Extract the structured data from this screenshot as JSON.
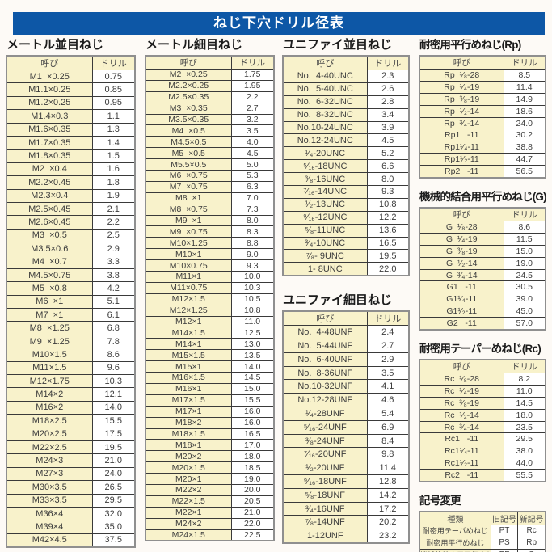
{
  "page_title": "ねじ下穴ドリル径表",
  "colors": {
    "header_bar_blue": "#0d57a6",
    "cell_cream": "#f8f2cb",
    "cell_white": "#ffffff",
    "border_outer_gray": "#8f8f8f",
    "border_inner_dark": "#3a3a3a"
  },
  "tables": [
    {
      "key": "metric-coarse",
      "title": "メートル並目ねじ",
      "headers": [
        "呼び",
        "ドリル"
      ],
      "rows": [
        [
          "M1  ×0.25",
          "0.75"
        ],
        [
          "M1.1×0.25",
          "0.85"
        ],
        [
          "M1.2×0.25",
          "0.95"
        ],
        [
          "M1.4×0.3",
          "1.1"
        ],
        [
          "M1.6×0.35",
          "1.3"
        ],
        [
          "M1.7×0.35",
          "1.4"
        ],
        [
          "M1.8×0.35",
          "1.5"
        ],
        [
          "M2  ×0.4",
          "1.6"
        ],
        [
          "M2.2×0.45",
          "1.8"
        ],
        [
          "M2.3×0.4",
          "1.9"
        ],
        [
          "M2.5×0.45",
          "2.1"
        ],
        [
          "M2.6×0.45",
          "2.2"
        ],
        [
          "M3  ×0.5",
          "2.5"
        ],
        [
          "M3.5×0.6",
          "2.9"
        ],
        [
          "M4  ×0.7",
          "3.3"
        ],
        [
          "M4.5×0.75",
          "3.8"
        ],
        [
          "M5  ×0.8",
          "4.2"
        ],
        [
          "M6  ×1",
          "5.1"
        ],
        [
          "M7  ×1",
          "6.1"
        ],
        [
          "M8  ×1.25",
          "6.8"
        ],
        [
          "M9  ×1.25",
          "7.8"
        ],
        [
          "M10×1.5",
          "8.6"
        ],
        [
          "M11×1.5",
          "9.6"
        ],
        [
          "M12×1.75",
          "10.3"
        ],
        [
          "M14×2",
          "12.1"
        ],
        [
          "M16×2",
          "14.0"
        ],
        [
          "M18×2.5",
          "15.5"
        ],
        [
          "M20×2.5",
          "17.5"
        ],
        [
          "M22×2.5",
          "19.5"
        ],
        [
          "M24×3",
          "21.0"
        ],
        [
          "M27×3",
          "24.0"
        ],
        [
          "M30×3.5",
          "26.5"
        ],
        [
          "M33×3.5",
          "29.5"
        ],
        [
          "M36×4",
          "32.0"
        ],
        [
          "M39×4",
          "35.0"
        ],
        [
          "M42×4.5",
          "37.5"
        ]
      ]
    },
    {
      "key": "metric-fine",
      "title": "メートル細目ねじ",
      "headers": [
        "呼び",
        "ドリル"
      ],
      "rows": [
        [
          "M2  ×0.25",
          "1.75"
        ],
        [
          "M2.2×0.25",
          "1.95"
        ],
        [
          "M2.5×0.35",
          "2.2"
        ],
        [
          "M3  ×0.35",
          "2.7"
        ],
        [
          "M3.5×0.35",
          "3.2"
        ],
        [
          "M4  ×0.5",
          "3.5"
        ],
        [
          "M4.5×0.5",
          "4.0"
        ],
        [
          "M5  ×0.5",
          "4.5"
        ],
        [
          "M5.5×0.5",
          "5.0"
        ],
        [
          "M6  ×0.75",
          "5.3"
        ],
        [
          "M7  ×0.75",
          "6.3"
        ],
        [
          "M8  ×1",
          "7.0"
        ],
        [
          "M8  ×0.75",
          "7.3"
        ],
        [
          "M9  ×1",
          "8.0"
        ],
        [
          "M9  ×0.75",
          "8.3"
        ],
        [
          "M10×1.25",
          "8.8"
        ],
        [
          "M10×1",
          "9.0"
        ],
        [
          "M10×0.75",
          "9.3"
        ],
        [
          "M11×1",
          "10.0"
        ],
        [
          "M11×0.75",
          "10.3"
        ],
        [
          "M12×1.5",
          "10.5"
        ],
        [
          "M12×1.25",
          "10.8"
        ],
        [
          "M12×1",
          "11.0"
        ],
        [
          "M14×1.5",
          "12.5"
        ],
        [
          "M14×1",
          "13.0"
        ],
        [
          "M15×1.5",
          "13.5"
        ],
        [
          "M15×1",
          "14.0"
        ],
        [
          "M16×1.5",
          "14.5"
        ],
        [
          "M16×1",
          "15.0"
        ],
        [
          "M17×1.5",
          "15.5"
        ],
        [
          "M17×1",
          "16.0"
        ],
        [
          "M18×2",
          "16.0"
        ],
        [
          "M18×1.5",
          "16.5"
        ],
        [
          "M18×1",
          "17.0"
        ],
        [
          "M20×2",
          "18.0"
        ],
        [
          "M20×1.5",
          "18.5"
        ],
        [
          "M20×1",
          "19.0"
        ],
        [
          "M22×2",
          "20.0"
        ],
        [
          "M22×1.5",
          "20.5"
        ],
        [
          "M22×1",
          "21.0"
        ],
        [
          "M24×2",
          "22.0"
        ],
        [
          "M24×1.5",
          "22.5"
        ]
      ]
    },
    {
      "key": "unified-coarse",
      "title": "ユニファイ並目ねじ",
      "headers": [
        "呼び",
        "ドリル"
      ],
      "rows": [
        [
          "No.  4-40UNC",
          "2.3"
        ],
        [
          "No.  5-40UNC",
          "2.6"
        ],
        [
          "No.  6-32UNC",
          "2.8"
        ],
        [
          "No.  8-32UNC",
          "3.4"
        ],
        [
          "No.10-24UNC",
          "3.9"
        ],
        [
          "No.12-24UNC",
          "4.5"
        ],
        [
          "¹⁄₄-20UNC",
          "5.2"
        ],
        [
          "⁵⁄₁₆-18UNC",
          "6.6"
        ],
        [
          "³⁄₈-16UNC",
          "8.0"
        ],
        [
          "⁷⁄₁₆-14UNC",
          "9.3"
        ],
        [
          "¹⁄₂-13UNC",
          "10.8"
        ],
        [
          "⁹⁄₁₆-12UNC",
          "12.2"
        ],
        [
          "⁵⁄₈-11UNC",
          "13.6"
        ],
        [
          "³⁄₄-10UNC",
          "16.5"
        ],
        [
          "⁷⁄₈- 9UNC",
          "19.5"
        ],
        [
          "1- 8UNC",
          "22.0"
        ]
      ]
    },
    {
      "key": "unified-fine",
      "title": "ユニファイ細目ねじ",
      "headers": [
        "呼び",
        "ドリル"
      ],
      "rows": [
        [
          "No.  4-48UNF",
          "2.4"
        ],
        [
          "No.  5-44UNF",
          "2.7"
        ],
        [
          "No.  6-40UNF",
          "2.9"
        ],
        [
          "No.  8-36UNF",
          "3.5"
        ],
        [
          "No.10-32UNF",
          "4.1"
        ],
        [
          "No.12-28UNF",
          "4.6"
        ],
        [
          "¹⁄₄-28UNF",
          "5.4"
        ],
        [
          "⁵⁄₁₆-24UNF",
          "6.9"
        ],
        [
          "³⁄₈-24UNF",
          "8.4"
        ],
        [
          "⁷⁄₁₆-20UNF",
          "9.8"
        ],
        [
          "¹⁄₂-20UNF",
          "11.4"
        ],
        [
          "⁹⁄₁₆-18UNF",
          "12.8"
        ],
        [
          "⁵⁄₈-18UNF",
          "14.2"
        ],
        [
          "³⁄₄-16UNF",
          "17.2"
        ],
        [
          "⁷⁄₈-14UNF",
          "20.2"
        ],
        [
          "1-12UNF",
          "23.2"
        ]
      ]
    },
    {
      "key": "rp-parallel",
      "title": "耐密用平行めねじ(Rp)",
      "headers": [
        "呼び",
        "ドリル"
      ],
      "rows": [
        [
          "Rp  ¹⁄₈-28",
          "8.5"
        ],
        [
          "Rp  ¹⁄₄-19",
          "11.4"
        ],
        [
          "Rp  ³⁄₈-19",
          "14.9"
        ],
        [
          "Rp  ¹⁄₂-14",
          "18.6"
        ],
        [
          "Rp  ³⁄₄-14",
          "24.0"
        ],
        [
          "Rp1   -11",
          "30.2"
        ],
        [
          "Rp1¹⁄₄-11",
          "38.8"
        ],
        [
          "Rp1¹⁄₂-11",
          "44.7"
        ],
        [
          "Rp2   -11",
          "56.5"
        ]
      ]
    },
    {
      "key": "g-parallel",
      "title": "機械的結合用平行めねじ(G)",
      "headers": [
        "呼び",
        "ドリル"
      ],
      "rows": [
        [
          "G  ¹⁄₈-28",
          "8.6"
        ],
        [
          "G  ¹⁄₄-19",
          "11.5"
        ],
        [
          "G  ³⁄₈-19",
          "15.0"
        ],
        [
          "G  ¹⁄₂-14",
          "19.0"
        ],
        [
          "G  ³⁄₄-14",
          "24.5"
        ],
        [
          "G1   -11",
          "30.5"
        ],
        [
          "G1¹⁄₄-11",
          "39.0"
        ],
        [
          "G1¹⁄₂-11",
          "45.0"
        ],
        [
          "G2   -11",
          "57.0"
        ]
      ]
    },
    {
      "key": "rc-taper",
      "title": "耐密用テーパーめねじ(Rc)",
      "headers": [
        "呼び",
        "ドリル"
      ],
      "rows": [
        [
          "Rc  ¹⁄₈-28",
          "8.2"
        ],
        [
          "Rc  ¹⁄₄-19",
          "11.0"
        ],
        [
          "Rc  ³⁄₈-19",
          "14.5"
        ],
        [
          "Rc  ¹⁄₂-14",
          "18.0"
        ],
        [
          "Rc  ³⁄₄-14",
          "23.5"
        ],
        [
          "Rc1   -11",
          "29.5"
        ],
        [
          "Rc1¹⁄₄-11",
          "38.0"
        ],
        [
          "Rc1¹⁄₂-11",
          "44.0"
        ],
        [
          "Rc2   -11",
          "55.5"
        ]
      ]
    },
    {
      "key": "symbol-change",
      "title": "記号変更",
      "headers": [
        "種類",
        "旧記号",
        "新記号"
      ],
      "rows": [
        [
          "耐密用テーパめねじ",
          "PT",
          "Rc"
        ],
        [
          "耐密用平行めねじ",
          "PS",
          "Rp"
        ],
        [
          "機械的結合用平行めねじ",
          "PF",
          "G"
        ]
      ]
    }
  ]
}
